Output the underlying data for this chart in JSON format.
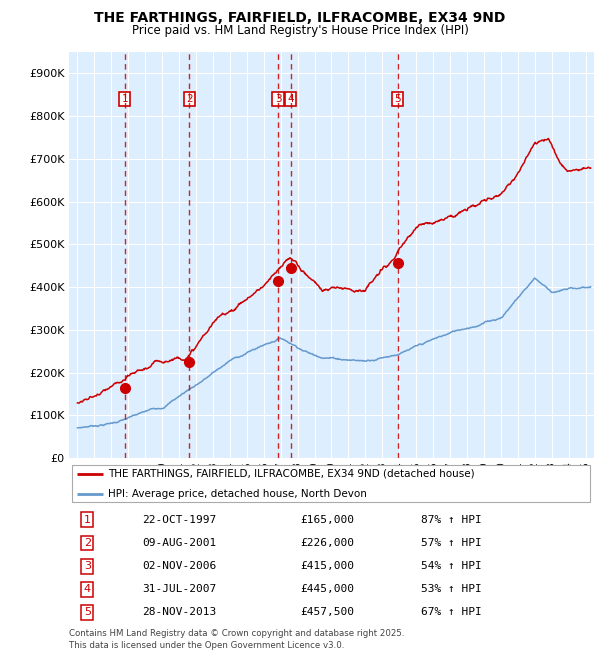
{
  "title": "THE FARTHINGS, FAIRFIELD, ILFRACOMBE, EX34 9ND",
  "subtitle": "Price paid vs. HM Land Registry's House Price Index (HPI)",
  "legend_line1": "THE FARTHINGS, FAIRFIELD, ILFRACOMBE, EX34 9ND (detached house)",
  "legend_line2": "HPI: Average price, detached house, North Devon",
  "footnote": "Contains HM Land Registry data © Crown copyright and database right 2025.\nThis data is licensed under the Open Government Licence v3.0.",
  "sale_points": [
    {
      "num": 1,
      "date": "22-OCT-1997",
      "price": 165000,
      "hpi_pct": "87% ↑ HPI",
      "x_year": 1997.8
    },
    {
      "num": 2,
      "date": "09-AUG-2001",
      "price": 226000,
      "hpi_pct": "57% ↑ HPI",
      "x_year": 2001.6
    },
    {
      "num": 3,
      "date": "02-NOV-2006",
      "price": 415000,
      "hpi_pct": "54% ↑ HPI",
      "x_year": 2006.84
    },
    {
      "num": 4,
      "date": "31-JUL-2007",
      "price": 445000,
      "hpi_pct": "53% ↑ HPI",
      "x_year": 2007.58
    },
    {
      "num": 5,
      "date": "28-NOV-2013",
      "price": 457500,
      "hpi_pct": "67% ↑ HPI",
      "x_year": 2013.91
    }
  ],
  "hpi_color": "#6699cc",
  "price_color": "#cc0000",
  "vline_color": "#cc0000",
  "box_color": "#cc0000",
  "grid_color": "#cccccc",
  "bg_color": "#ddeeff",
  "bg_color2": "#e8f0f8",
  "ylim": [
    0,
    950000
  ],
  "yticks": [
    0,
    100000,
    200000,
    300000,
    400000,
    500000,
    600000,
    700000,
    800000,
    900000
  ],
  "xlim_start": 1994.5,
  "xlim_end": 2025.5,
  "table_data": [
    [
      1,
      "22-OCT-1997",
      "£165,000",
      "87% ↑ HPI"
    ],
    [
      2,
      "09-AUG-2001",
      "£226,000",
      "57% ↑ HPI"
    ],
    [
      3,
      "02-NOV-2006",
      "£415,000",
      "54% ↑ HPI"
    ],
    [
      4,
      "31-JUL-2007",
      "£445,000",
      "53% ↑ HPI"
    ],
    [
      5,
      "28-NOV-2013",
      "£457,500",
      "67% ↑ HPI"
    ]
  ]
}
